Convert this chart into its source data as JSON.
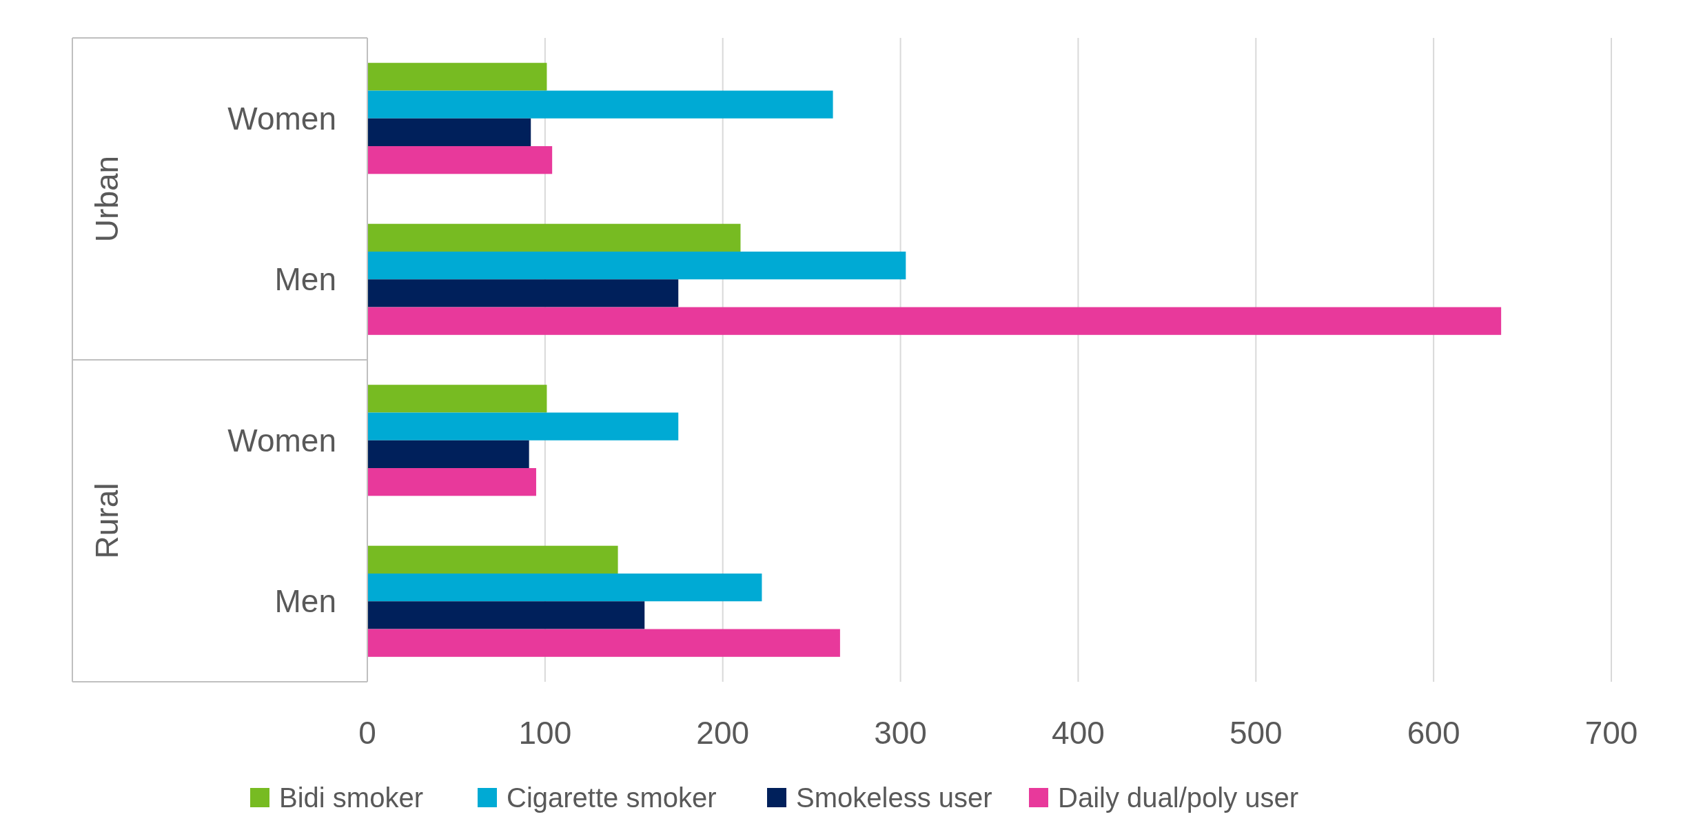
{
  "chart_data": {
    "type": "bar",
    "orientation": "horizontal",
    "categories": [
      "Women",
      "Men",
      "Women",
      "Men"
    ],
    "annotations": [
      "Urban",
      "Rural"
    ],
    "series": [
      {
        "name": "Bidi smoker",
        "color": "#77bb22",
        "values": [
          101,
          210,
          101,
          141
        ]
      },
      {
        "name": "Cigarette smoker",
        "color": "#00aad4",
        "values": [
          262,
          303,
          175,
          222
        ]
      },
      {
        "name": "Smokeless user",
        "color": "#00205b",
        "values": [
          92,
          175,
          91,
          156
        ]
      },
      {
        "name": "Daily dual/poly user",
        "color": "#e8399b",
        "values": [
          104,
          638,
          95,
          266
        ]
      }
    ],
    "xlim": [
      0,
      700
    ],
    "xticks": [
      0,
      100,
      200,
      300,
      400,
      500,
      600,
      700
    ],
    "grid": "x",
    "legend": "bottom"
  }
}
